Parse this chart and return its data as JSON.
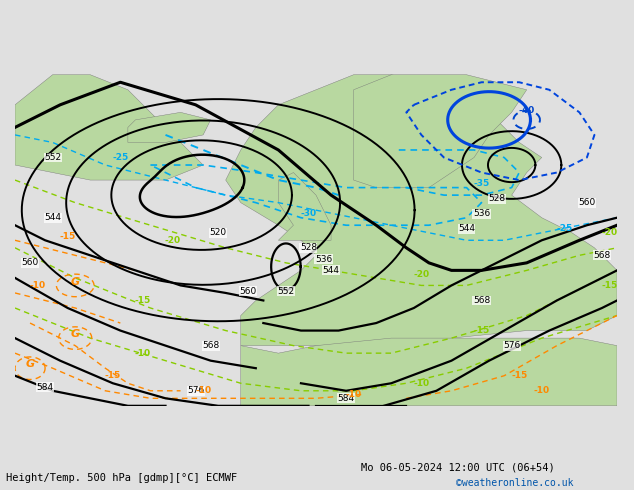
{
  "title_left": "Height/Temp. 500 hPa [gdmp][°C] ECMWF",
  "title_right": "Mo 06-05-2024 12:00 UTC (06+54)",
  "credit": "©weatheronline.co.uk",
  "land_color": "#b8d8a0",
  "sea_color": "#bebec8",
  "fig_width": 6.34,
  "fig_height": 4.9,
  "dpi": 100,
  "xlim": [
    -40,
    40
  ],
  "ylim": [
    28,
    74
  ]
}
